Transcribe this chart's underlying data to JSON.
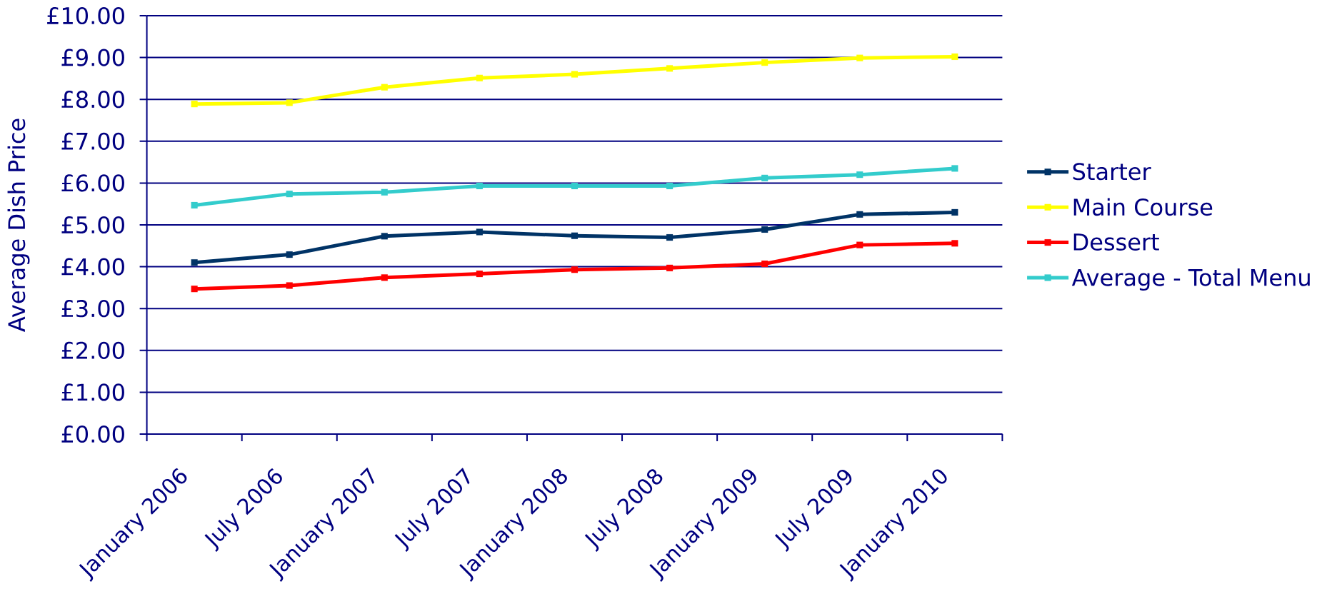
{
  "chart_data": {
    "type": "line",
    "ylabel": "Average Dish Price",
    "categories": [
      "January 2006",
      "July 2006",
      "January 2007",
      "July 2007",
      "January 2008",
      "July 2008",
      "January 2009",
      "July 2009",
      "January 2010"
    ],
    "series": [
      {
        "name": "Starter",
        "color": "#003366",
        "values": [
          4.1,
          4.29,
          4.73,
          4.83,
          4.74,
          4.7,
          4.89,
          5.25,
          5.3
        ]
      },
      {
        "name": "Main Course",
        "color": "#ffff00",
        "values": [
          7.89,
          7.92,
          8.29,
          8.51,
          8.6,
          8.74,
          8.88,
          8.99,
          9.02
        ]
      },
      {
        "name": "Dessert",
        "color": "#ff0000",
        "values": [
          3.47,
          3.55,
          3.74,
          3.83,
          3.93,
          3.97,
          4.07,
          4.52,
          4.56
        ]
      },
      {
        "name": "Average - Total Menu",
        "color": "#33cccc",
        "values": [
          5.47,
          5.74,
          5.78,
          5.93,
          5.93,
          5.93,
          6.12,
          6.2,
          6.35
        ]
      }
    ],
    "ylim": [
      0,
      10
    ],
    "yticks": [
      {
        "value": 0,
        "label": "£0.00"
      },
      {
        "value": 1,
        "label": "£1.00"
      },
      {
        "value": 2,
        "label": "£2.00"
      },
      {
        "value": 3,
        "label": "£3.00"
      },
      {
        "value": 4,
        "label": "£4.00"
      },
      {
        "value": 5,
        "label": "£5.00"
      },
      {
        "value": 6,
        "label": "£6.00"
      },
      {
        "value": 7,
        "label": "£7.00"
      },
      {
        "value": 8,
        "label": "£8.00"
      },
      {
        "value": 9,
        "label": "£9.00"
      },
      {
        "value": 10,
        "label": "£10.00"
      }
    ],
    "grid": "y",
    "legend": "right",
    "marker": "square",
    "line_style": "solid"
  }
}
